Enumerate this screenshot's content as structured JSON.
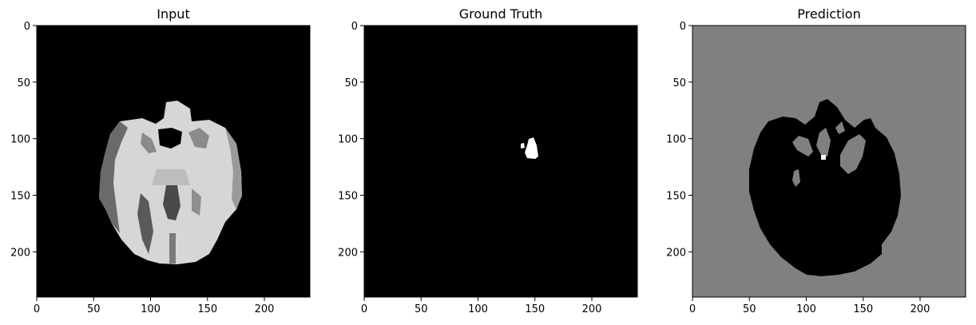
{
  "figure": {
    "panels": [
      {
        "id": "input",
        "title": "Input",
        "background": "#000000",
        "image_description_colors": {
          "tissue": "#dcdcdc",
          "shadow": "#5a5a5a"
        }
      },
      {
        "id": "ground-truth",
        "title": "Ground Truth",
        "background": "#000000",
        "image_description_colors": {
          "mask": "#ffffff"
        }
      },
      {
        "id": "prediction",
        "title": "Prediction",
        "background": "#808080",
        "image_description_colors": {
          "region": "#000000",
          "holes": "#808080",
          "speck": "#ffffff"
        }
      }
    ]
  },
  "chart_data": [
    {
      "type": "heatmap",
      "title": "Input",
      "xlabel": "",
      "ylabel": "",
      "xlim": [
        0,
        240
      ],
      "ylim": [
        240,
        0
      ],
      "xticks": [
        0,
        50,
        100,
        150,
        200
      ],
      "yticks": [
        0,
        50,
        100,
        150,
        200
      ],
      "xtick_labels": [
        "0",
        "50",
        "100",
        "150",
        "200"
      ],
      "ytick_labels": [
        "0",
        "50",
        "100",
        "150",
        "200"
      ],
      "grid": false
    },
    {
      "type": "heatmap",
      "title": "Ground Truth",
      "xlabel": "",
      "ylabel": "",
      "xlim": [
        0,
        240
      ],
      "ylim": [
        240,
        0
      ],
      "xticks": [
        0,
        50,
        100,
        150,
        200
      ],
      "yticks": [
        0,
        50,
        100,
        150,
        200
      ],
      "xtick_labels": [
        "0",
        "50",
        "100",
        "150",
        "200"
      ],
      "ytick_labels": [
        "0",
        "50",
        "100",
        "150",
        "200"
      ],
      "grid": false
    },
    {
      "type": "heatmap",
      "title": "Prediction",
      "xlabel": "",
      "ylabel": "",
      "xlim": [
        0,
        240
      ],
      "ylim": [
        240,
        0
      ],
      "xticks": [
        0,
        50,
        100,
        150,
        200
      ],
      "yticks": [
        0,
        50,
        100,
        150,
        200
      ],
      "xtick_labels": [
        "0",
        "50",
        "100",
        "150",
        "200"
      ],
      "ytick_labels": [
        "0",
        "50",
        "100",
        "150",
        "200"
      ],
      "grid": false
    }
  ]
}
